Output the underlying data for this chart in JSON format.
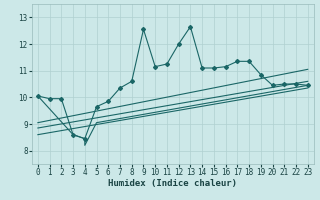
{
  "xlabel": "Humidex (Indice chaleur)",
  "ylabel": "",
  "bg_color": "#cce8e8",
  "grid_color": "#b0d0d0",
  "line_color": "#1a6666",
  "xlim": [
    -0.5,
    23.5
  ],
  "ylim": [
    7.5,
    13.5
  ],
  "x_ticks": [
    0,
    1,
    2,
    3,
    4,
    5,
    6,
    7,
    8,
    9,
    10,
    11,
    12,
    13,
    14,
    15,
    16,
    17,
    18,
    19,
    20,
    21,
    22,
    23
  ],
  "y_ticks": [
    8,
    9,
    10,
    11,
    12,
    13
  ],
  "main_line_x": [
    0,
    1,
    2,
    3,
    4,
    5,
    6,
    7,
    8,
    9,
    10,
    11,
    12,
    13,
    14,
    15,
    16,
    17,
    18,
    19,
    20,
    21,
    22,
    23
  ],
  "main_line_y": [
    10.05,
    9.95,
    9.95,
    8.6,
    8.45,
    9.65,
    9.85,
    10.35,
    10.6,
    12.55,
    11.15,
    11.25,
    12.0,
    12.65,
    11.1,
    11.1,
    11.15,
    11.35,
    11.35,
    10.85,
    10.45,
    10.5,
    10.5,
    10.45
  ],
  "line2_x": [
    0,
    3,
    4,
    4,
    5,
    23
  ],
  "line2_y": [
    10.05,
    8.6,
    8.45,
    8.2,
    9.05,
    10.45
  ],
  "regression_line1_x": [
    0,
    23
  ],
  "regression_line1_y": [
    8.85,
    10.6
  ],
  "regression_line2_x": [
    0,
    23
  ],
  "regression_line2_y": [
    8.6,
    10.35
  ],
  "regression_line3_x": [
    0,
    23
  ],
  "regression_line3_y": [
    9.05,
    11.05
  ]
}
